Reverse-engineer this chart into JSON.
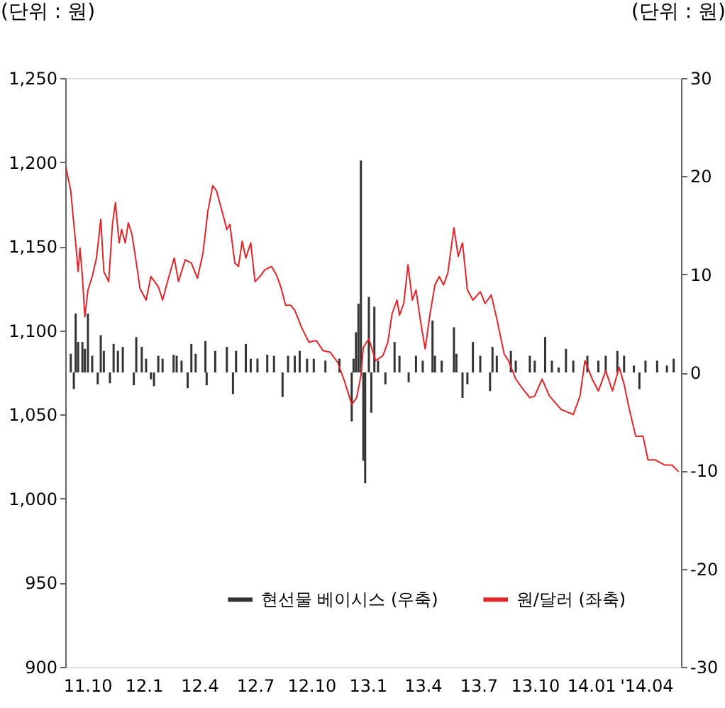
{
  "chart_data": {
    "type": "line",
    "ylabel": "(단위 : 원)",
    "y2label": "(단위 : 원)",
    "xlim": [
      "2011-08-26",
      "2014-05-28"
    ],
    "xticks": [
      {
        "value": "2011-10-01",
        "label": "11.10"
      },
      {
        "value": "2012-01-01",
        "label": "12.1"
      },
      {
        "value": "2012-04-01",
        "label": "12.4"
      },
      {
        "value": "2012-07-01",
        "label": "12.7"
      },
      {
        "value": "2012-10-01",
        "label": "12.10"
      },
      {
        "value": "2013-01-01",
        "label": "13.1"
      },
      {
        "value": "2013-04-01",
        "label": "13.4"
      },
      {
        "value": "2013-07-01",
        "label": "13.7"
      },
      {
        "value": "2013-10-01",
        "label": "13.10"
      },
      {
        "value": "2014-01-01",
        "label": "14.01"
      },
      {
        "value": "2014-04-01",
        "label": "'14.04"
      }
    ],
    "ylim": [
      900,
      1250
    ],
    "yticks": [
      {
        "value": 900,
        "label": "900"
      },
      {
        "value": 950,
        "label": "950"
      },
      {
        "value": 1000,
        "label": "1,000"
      },
      {
        "value": 1050,
        "label": "1,050"
      },
      {
        "value": 1100,
        "label": "1,100"
      },
      {
        "value": 1150,
        "label": "1,150"
      },
      {
        "value": 1200,
        "label": "1,200"
      },
      {
        "value": 1250,
        "label": "1,250"
      }
    ],
    "y2lim": [
      -30,
      30
    ],
    "y2ticks": [
      -30,
      -20,
      -10,
      0,
      10,
      20,
      30
    ],
    "grid": false,
    "legend": "bottom",
    "series": [
      {
        "name": "현선물 베이시스 (우축)",
        "type": "bar",
        "axis": "y2",
        "color": "#333333",
        "x": [
          "2011-09-04",
          "2011-09-09",
          "2011-09-12",
          "2011-09-16",
          "2011-09-23",
          "2011-09-27",
          "2011-10-02",
          "2011-10-09",
          "2011-10-18",
          "2011-10-23",
          "2011-10-28",
          "2011-11-07",
          "2011-11-13",
          "2011-11-20",
          "2011-11-28",
          "2011-12-16",
          "2011-12-20",
          "2011-12-29",
          "2012-01-05",
          "2012-01-13",
          "2012-01-18",
          "2012-01-25",
          "2012-02-01",
          "2012-02-19",
          "2012-02-24",
          "2012-03-03",
          "2012-03-13",
          "2012-03-19",
          "2012-03-26",
          "2012-04-11",
          "2012-04-13",
          "2012-04-27",
          "2012-05-16",
          "2012-05-26",
          "2012-05-31",
          "2012-06-16",
          "2012-06-24",
          "2012-07-05",
          "2012-07-21",
          "2012-08-01",
          "2012-08-15",
          "2012-08-24",
          "2012-09-04",
          "2012-09-12",
          "2012-09-24",
          "2012-10-05",
          "2012-10-24",
          "2012-11-16",
          "2012-12-06",
          "2012-12-09",
          "2012-12-13",
          "2012-12-17",
          "2012-12-21",
          "2012-12-25",
          "2012-12-28",
          "2013-01-03",
          "2013-01-07",
          "2013-01-12",
          "2013-01-18",
          "2013-01-30",
          "2013-02-14",
          "2013-02-22",
          "2013-03-09",
          "2013-03-21",
          "2013-04-01",
          "2013-04-17",
          "2013-04-21",
          "2013-05-02",
          "2013-05-22",
          "2013-05-26",
          "2013-06-05",
          "2013-06-13",
          "2013-06-22",
          "2013-07-04",
          "2013-07-20",
          "2013-07-24",
          "2013-07-31",
          "2013-08-23",
          "2013-08-31",
          "2013-09-23",
          "2013-10-01",
          "2013-10-18",
          "2013-10-29",
          "2013-11-09",
          "2013-11-21",
          "2013-12-03",
          "2013-12-26",
          "2014-01-13",
          "2014-01-25",
          "2014-02-13",
          "2014-02-24",
          "2014-03-12",
          "2014-03-21",
          "2014-03-31",
          "2014-04-19",
          "2014-05-05",
          "2014-05-16"
        ],
        "values": [
          1.9,
          -1.7,
          6.0,
          3.1,
          3.1,
          2.4,
          6.0,
          1.7,
          -1.2,
          3.8,
          2.2,
          -1.1,
          2.9,
          2.2,
          2.6,
          -1.3,
          3.6,
          2.6,
          1.4,
          -0.7,
          -1.4,
          1.7,
          1.4,
          1.8,
          1.7,
          1.2,
          -1.6,
          2.9,
          1.9,
          3.2,
          -1.3,
          2.2,
          2.6,
          -2.2,
          2.2,
          2.9,
          1.4,
          1.4,
          1.8,
          1.7,
          -2.5,
          1.7,
          1.7,
          2.2,
          1.4,
          1.4,
          1.2,
          1.4,
          -5.0,
          1.4,
          4.1,
          7.0,
          21.6,
          -9.0,
          -11.3,
          7.7,
          -4.1,
          6.7,
          1.2,
          -1.2,
          3.1,
          1.7,
          -1.0,
          1.7,
          1.2,
          5.3,
          1.7,
          1.2,
          4.6,
          1.9,
          -2.6,
          -1.2,
          3.1,
          1.7,
          -1.9,
          2.6,
          1.7,
          2.2,
          1.2,
          1.7,
          1.2,
          3.6,
          1.2,
          0.5,
          2.4,
          1.2,
          1.7,
          1.2,
          1.7,
          2.2,
          1.7,
          0.7,
          -1.7,
          1.2,
          1.2,
          0.7,
          1.4
        ]
      },
      {
        "name": "원/달러 (좌축)",
        "color": "#e0262b",
        "x": [
          "2011-08-27",
          "2011-09-04",
          "2011-09-08",
          "2011-09-12",
          "2011-09-16",
          "2011-09-19",
          "2011-09-23",
          "2011-09-27",
          "2011-10-02",
          "2011-10-09",
          "2011-10-16",
          "2011-10-23",
          "2011-10-28",
          "2011-11-05",
          "2011-11-11",
          "2011-11-16",
          "2011-11-22",
          "2011-11-26",
          "2011-12-02",
          "2011-12-07",
          "2011-12-13",
          "2011-12-21",
          "2011-12-26",
          "2012-01-05",
          "2012-01-13",
          "2012-01-25",
          "2012-02-01",
          "2012-02-09",
          "2012-02-20",
          "2012-02-27",
          "2012-03-09",
          "2012-03-19",
          "2012-03-29",
          "2012-04-07",
          "2012-04-15",
          "2012-04-23",
          "2012-04-29",
          "2012-05-08",
          "2012-05-16",
          "2012-05-21",
          "2012-05-29",
          "2012-06-04",
          "2012-06-10",
          "2012-06-16",
          "2012-06-24",
          "2012-07-01",
          "2012-07-09",
          "2012-07-17",
          "2012-07-28",
          "2012-08-05",
          "2012-08-12",
          "2012-08-20",
          "2012-08-28",
          "2012-09-04",
          "2012-09-16",
          "2012-09-27",
          "2012-10-09",
          "2012-10-20",
          "2012-11-01",
          "2012-11-13",
          "2012-11-24",
          "2012-12-06",
          "2012-12-14",
          "2012-12-21",
          "2012-12-25",
          "2013-01-03",
          "2013-01-14",
          "2013-01-26",
          "2013-02-03",
          "2013-02-10",
          "2013-02-18",
          "2013-02-22",
          "2013-03-01",
          "2013-03-08",
          "2013-03-15",
          "2013-03-21",
          "2013-03-29",
          "2013-04-05",
          "2013-04-13",
          "2013-04-21",
          "2013-04-28",
          "2013-05-05",
          "2013-05-12",
          "2013-05-22",
          "2013-05-29",
          "2013-06-05",
          "2013-06-13",
          "2013-06-22",
          "2013-07-04",
          "2013-07-12",
          "2013-07-22",
          "2013-07-31",
          "2013-08-12",
          "2013-08-19",
          "2013-08-31",
          "2013-09-12",
          "2013-09-23",
          "2013-10-01",
          "2013-10-13",
          "2013-10-25",
          "2013-11-13",
          "2013-12-03",
          "2013-12-14",
          "2013-12-22",
          "2014-01-03",
          "2014-01-13",
          "2014-01-25",
          "2014-02-05",
          "2014-02-16",
          "2014-02-24",
          "2014-03-04",
          "2014-03-15",
          "2014-03-27",
          "2014-04-04",
          "2014-04-16",
          "2014-05-01",
          "2014-05-13",
          "2014-05-24"
        ],
        "values": [
          1197,
          1183,
          1167,
          1152,
          1135,
          1149,
          1132,
          1108,
          1124,
          1132,
          1143,
          1166,
          1135,
          1129,
          1163,
          1176,
          1152,
          1160,
          1152,
          1164,
          1157,
          1138,
          1125,
          1118,
          1132,
          1126,
          1118,
          1129,
          1143,
          1129,
          1142,
          1140,
          1131,
          1146,
          1171,
          1186,
          1183,
          1171,
          1160,
          1163,
          1140,
          1138,
          1153,
          1143,
          1152,
          1129,
          1132,
          1136,
          1138,
          1133,
          1126,
          1115,
          1115,
          1112,
          1101,
          1093,
          1094,
          1088,
          1087,
          1081,
          1070,
          1056,
          1060,
          1073,
          1090,
          1095,
          1082,
          1085,
          1093,
          1110,
          1118,
          1109,
          1116,
          1139,
          1118,
          1124,
          1104,
          1089,
          1110,
          1127,
          1132,
          1127,
          1134,
          1161,
          1144,
          1152,
          1124,
          1118,
          1123,
          1116,
          1121,
          1107,
          1086,
          1082,
          1071,
          1065,
          1060,
          1061,
          1071,
          1061,
          1053,
          1050,
          1061,
          1082,
          1071,
          1064,
          1076,
          1064,
          1078,
          1068,
          1054,
          1037,
          1037,
          1023,
          1023,
          1020,
          1020,
          1016
        ]
      }
    ]
  }
}
